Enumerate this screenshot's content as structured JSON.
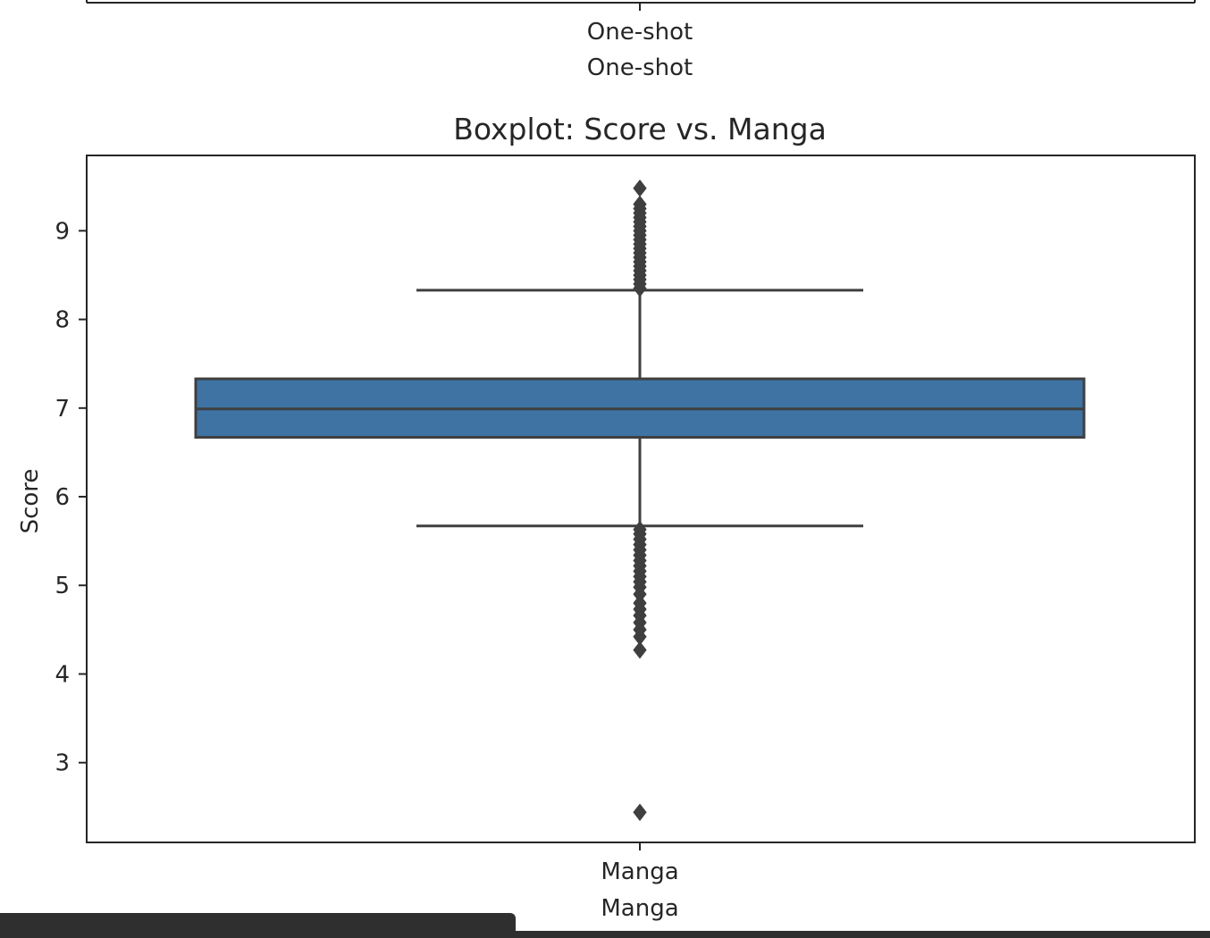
{
  "previous_chart": {
    "tick_label": "One-shot",
    "xlabel": "One-shot"
  },
  "chart_data": {
    "type": "box",
    "title": "Boxplot: Score vs. Manga",
    "xlabel": "Manga",
    "ylabel": "Score",
    "categories": [
      "Manga"
    ],
    "ylim": [
      2.1,
      9.85
    ],
    "yticks": [
      3,
      4,
      5,
      6,
      7,
      8,
      9
    ],
    "grid": false,
    "box_color": "#3e73a3",
    "line_color": "#3f3f3f",
    "stats": {
      "whisker_low": 5.67,
      "q1": 6.67,
      "median": 6.99,
      "q3": 7.33,
      "whisker_high": 8.33
    },
    "outliers_high": [
      8.35,
      8.4,
      8.45,
      8.5,
      8.55,
      8.6,
      8.65,
      8.7,
      8.75,
      8.8,
      8.85,
      8.9,
      8.95,
      9.0,
      9.05,
      9.1,
      9.15,
      9.2,
      9.25,
      9.3,
      9.48
    ],
    "outliers_low": [
      5.63,
      5.58,
      5.52,
      5.46,
      5.4,
      5.34,
      5.28,
      5.22,
      5.16,
      5.1,
      5.04,
      4.98,
      4.9,
      4.8,
      4.73,
      4.66,
      4.58,
      4.5,
      4.42,
      4.27,
      2.44
    ]
  }
}
